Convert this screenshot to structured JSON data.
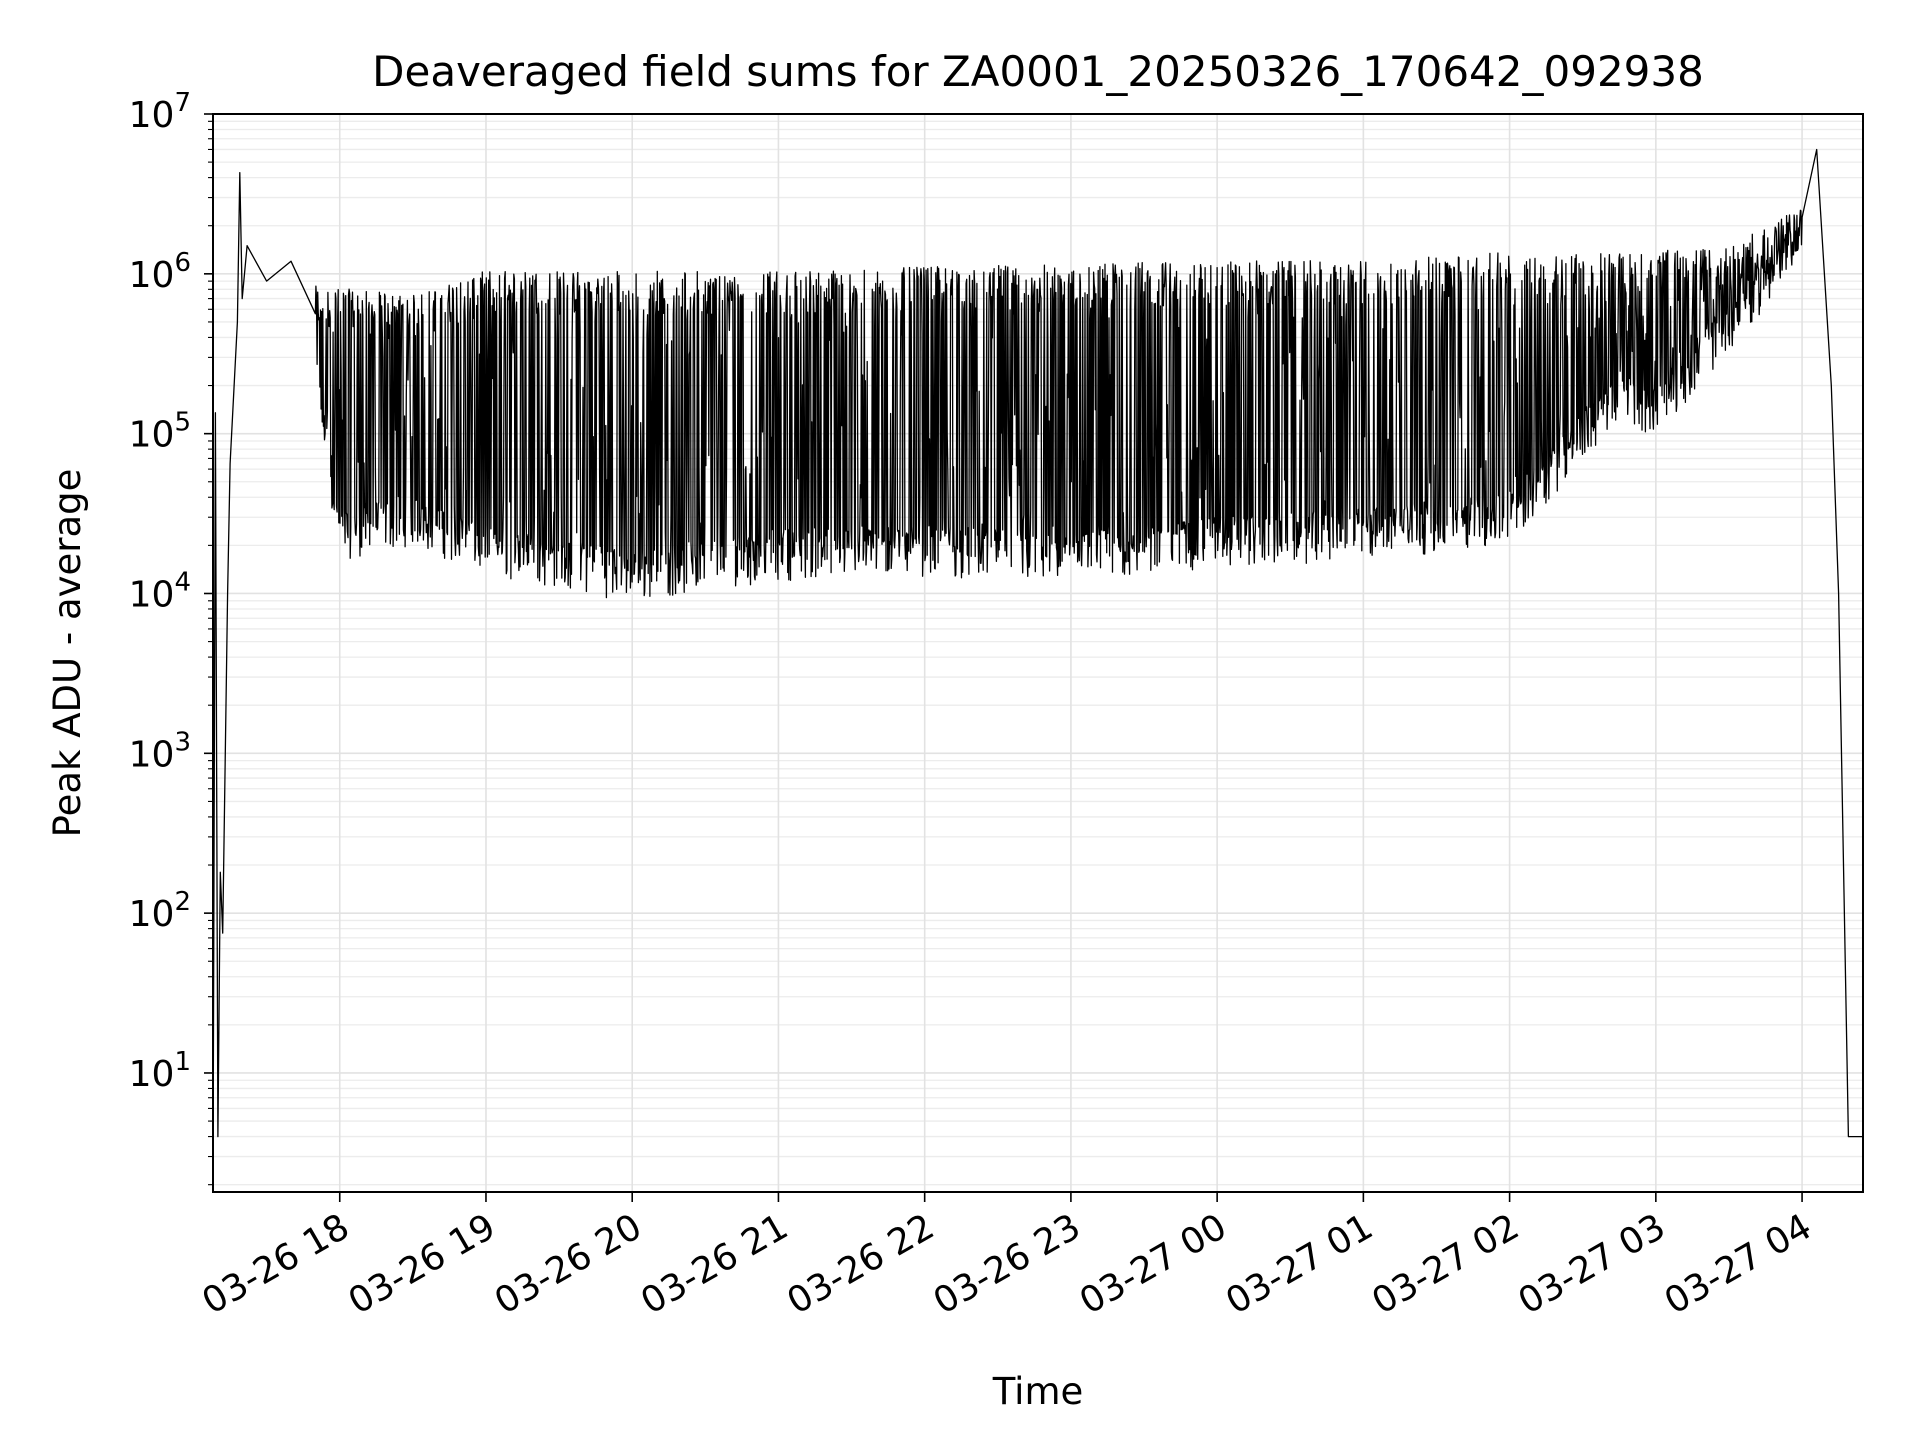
{
  "chart_data": {
    "type": "line",
    "title": "Deaveraged field sums for ZA0001_20250326_170642_092938",
    "xlabel": "Time",
    "ylabel": "Peak ADU - average",
    "yscale": "log",
    "grid": "on",
    "xlim": [
      "2025-03-26T17:08",
      "2025-03-27T04:25"
    ],
    "ylim": [
      1.8,
      10000000
    ],
    "x_ticks": [
      "03-26 18",
      "03-26 19",
      "03-26 20",
      "03-26 21",
      "03-26 22",
      "03-26 23",
      "03-27 00",
      "03-27 01",
      "03-27 02",
      "03-27 03",
      "03-27 04"
    ],
    "y_ticks": [
      {
        "value": 10,
        "base": "10",
        "exp": "1"
      },
      {
        "value": 100,
        "base": "10",
        "exp": "2"
      },
      {
        "value": 1000,
        "base": "10",
        "exp": "3"
      },
      {
        "value": 10000,
        "base": "10",
        "exp": "4"
      },
      {
        "value": 100000,
        "base": "10",
        "exp": "5"
      },
      {
        "value": 1000000,
        "base": "10",
        "exp": "6"
      },
      {
        "value": 10000000,
        "base": "10",
        "exp": "7"
      }
    ],
    "series": [
      {
        "color": "#000000",
        "points": [
          {
            "x": "2025-03-26T17:08",
            "y": 2
          },
          {
            "x": "2025-03-26T17:09",
            "y": 135000
          },
          {
            "x": "2025-03-26T17:10",
            "y": 4
          },
          {
            "x": "2025-03-26T17:11",
            "y": 180
          },
          {
            "x": "2025-03-26T17:12",
            "y": 75
          },
          {
            "x": "2025-03-26T17:14",
            "y": 10000
          },
          {
            "x": "2025-03-26T17:15",
            "y": 65000
          },
          {
            "x": "2025-03-26T17:18",
            "y": 500000
          },
          {
            "x": "2025-03-26T17:19",
            "y": 4300000
          },
          {
            "x": "2025-03-26T17:20",
            "y": 700000
          },
          {
            "x": "2025-03-26T17:22",
            "y": 1500000
          },
          {
            "x": "2025-03-26T17:30",
            "y": 900000
          },
          {
            "x": "2025-03-26T17:40",
            "y": 1200000
          },
          {
            "x": "2025-03-26T17:50",
            "y": 200000
          },
          {
            "x": "2025-03-26T18:00",
            "y": 20000
          },
          {
            "x": "2025-03-26T18:30",
            "y": 25000
          },
          {
            "x": "2025-03-26T19:00",
            "y": 16000
          },
          {
            "x": "2025-03-26T20:00",
            "y": 11000
          },
          {
            "x": "2025-03-26T21:00",
            "y": 15000
          },
          {
            "x": "2025-03-26T22:00",
            "y": 16000
          },
          {
            "x": "2025-03-26T23:00",
            "y": 14000
          },
          {
            "x": "2025-03-27T00:00",
            "y": 18000
          },
          {
            "x": "2025-03-27T01:00",
            "y": 20000
          },
          {
            "x": "2025-03-27T02:00",
            "y": 25000
          },
          {
            "x": "2025-03-27T02:45",
            "y": 150000
          },
          {
            "x": "2025-03-27T03:00",
            "y": 120000
          },
          {
            "x": "2025-03-27T03:30",
            "y": 400000
          },
          {
            "x": "2025-03-27T04:00",
            "y": 1500000
          },
          {
            "x": "2025-03-27T04:06",
            "y": 6000000
          },
          {
            "x": "2025-03-27T04:12",
            "y": 200000
          },
          {
            "x": "2025-03-27T04:15",
            "y": 10000
          },
          {
            "x": "2025-03-27T04:19",
            "y": 4
          },
          {
            "x": "2025-03-27T04:25",
            "y": 4
          }
        ],
        "upper_envelope": [
          {
            "x": "2025-03-26T17:50",
            "y": 800000
          },
          {
            "x": "2025-03-26T18:30",
            "y": 700000
          },
          {
            "x": "2025-03-26T19:00",
            "y": 1000000
          },
          {
            "x": "2025-03-26T20:00",
            "y": 1000000
          },
          {
            "x": "2025-03-26T21:00",
            "y": 1000000
          },
          {
            "x": "2025-03-26T22:00",
            "y": 1050000
          },
          {
            "x": "2025-03-26T23:00",
            "y": 1100000
          },
          {
            "x": "2025-03-27T00:00",
            "y": 1150000
          },
          {
            "x": "2025-03-27T01:00",
            "y": 1150000
          },
          {
            "x": "2025-03-27T02:00",
            "y": 1300000
          },
          {
            "x": "2025-03-27T02:50",
            "y": 1300000
          },
          {
            "x": "2025-03-27T03:30",
            "y": 1400000
          },
          {
            "x": "2025-03-27T04:00",
            "y": 2500000
          }
        ]
      }
    ]
  }
}
